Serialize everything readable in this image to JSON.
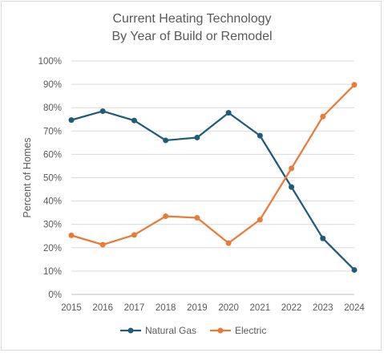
{
  "chart_data": {
    "type": "line",
    "title_lines": [
      "Current Heating Technology",
      "By Year of Build or Remodel"
    ],
    "ylabel": "Percent of Homes",
    "xlabel": "",
    "categories": [
      "2015",
      "2016",
      "2017",
      "2018",
      "2019",
      "2020",
      "2021",
      "2022",
      "2023",
      "2024"
    ],
    "ylim": [
      0,
      100
    ],
    "yticks": [
      0,
      10,
      20,
      30,
      40,
      50,
      60,
      70,
      80,
      90,
      100
    ],
    "ytick_labels": [
      "0%",
      "10%",
      "20%",
      "30%",
      "40%",
      "50%",
      "60%",
      "70%",
      "80%",
      "90%",
      "100%"
    ],
    "grid": "horizontal",
    "legend_position": "bottom",
    "series": [
      {
        "name": "Natural Gas",
        "color": "#1f5c7a",
        "values": [
          74.7,
          78.5,
          74.5,
          66.0,
          67.2,
          77.8,
          68.0,
          46.0,
          24.0,
          10.5
        ]
      },
      {
        "name": "Electric",
        "color": "#e97b38",
        "values": [
          25.3,
          21.3,
          25.5,
          33.5,
          32.8,
          22.0,
          32.0,
          54.0,
          76.2,
          89.8
        ]
      }
    ]
  }
}
